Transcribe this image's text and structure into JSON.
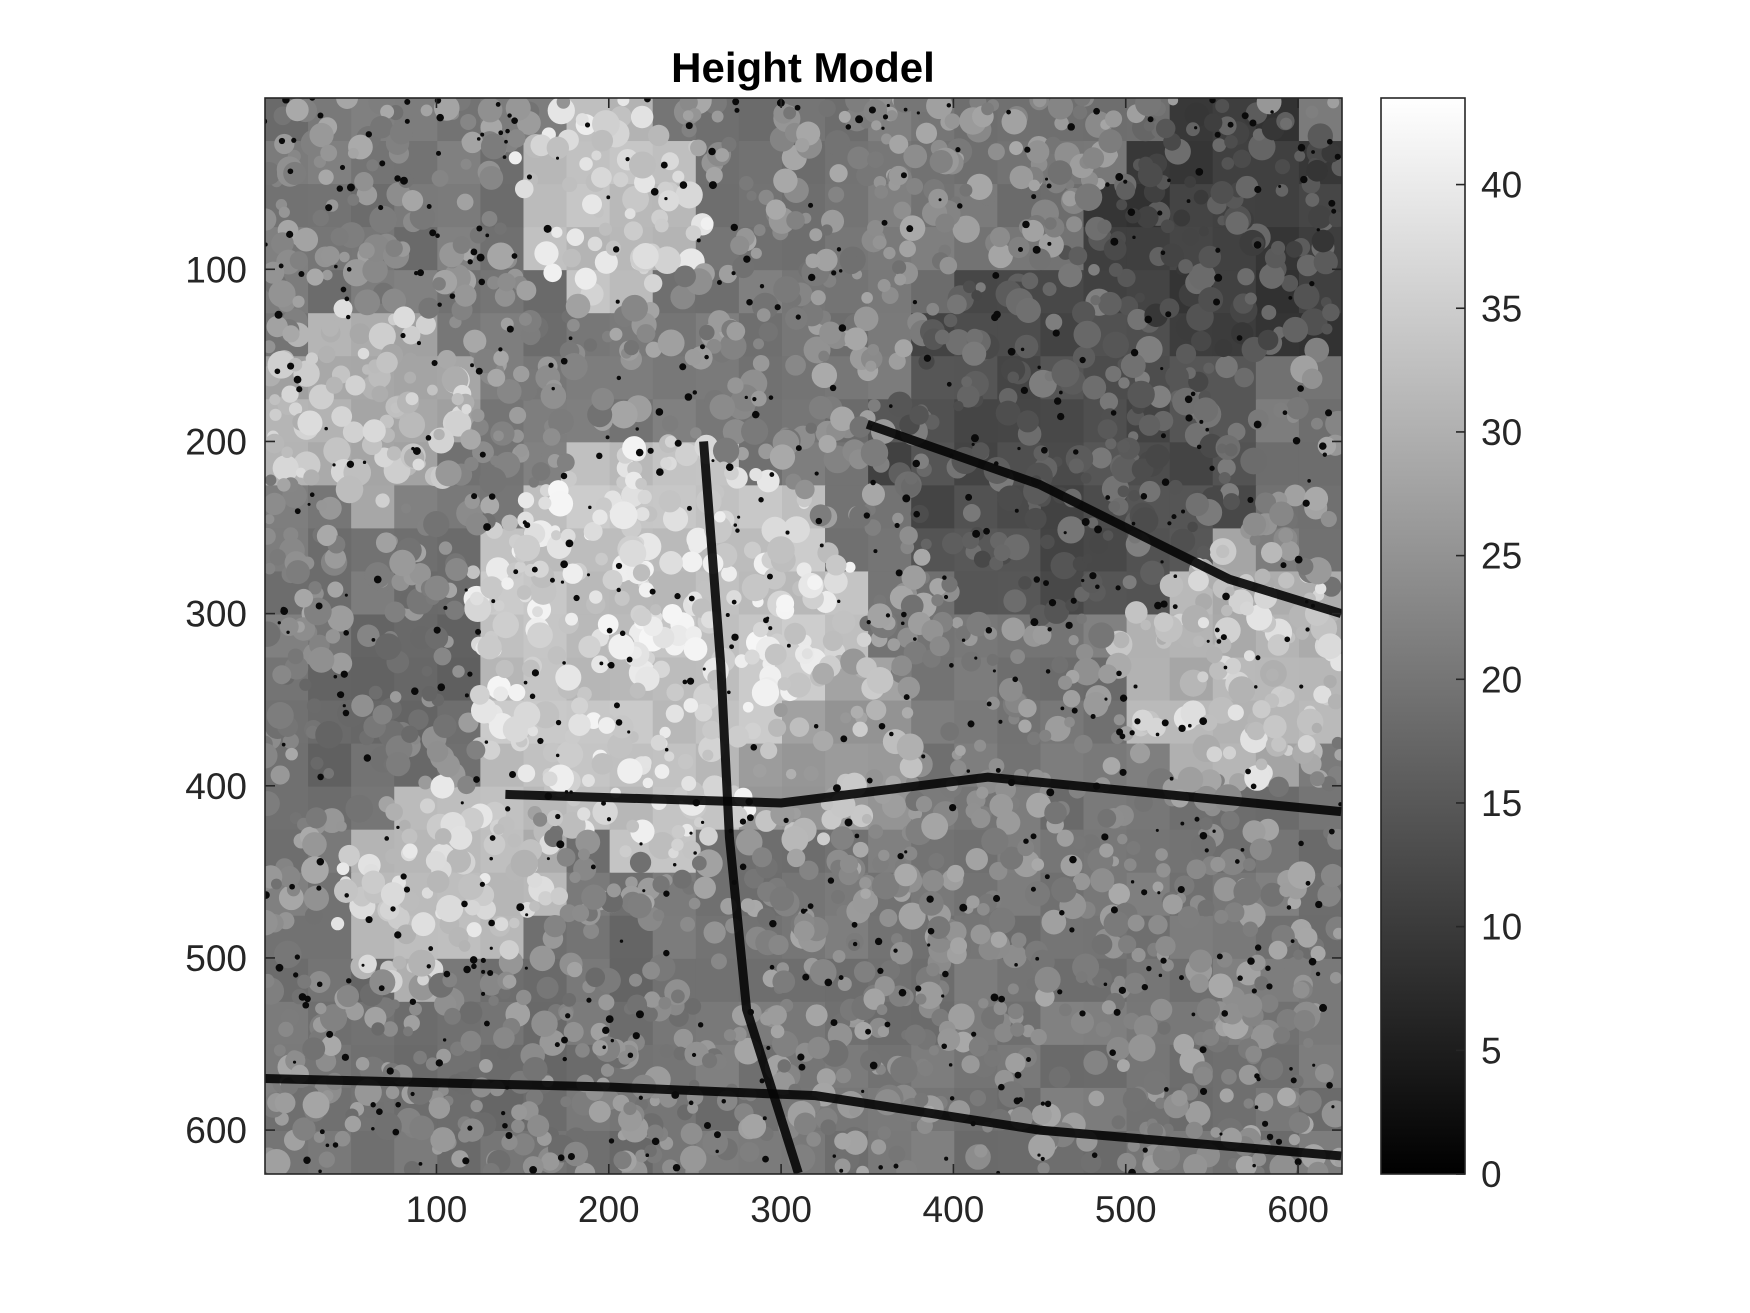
{
  "chart_data": {
    "type": "heatmap",
    "title": "Height Model",
    "xlabel": "",
    "ylabel": "",
    "xlim": [
      0.5,
      625.5
    ],
    "ylim": [
      625.5,
      0.5
    ],
    "y_reversed": true,
    "x_ticks": [
      100,
      200,
      300,
      400,
      500,
      600
    ],
    "y_ticks": [
      100,
      200,
      300,
      400,
      500,
      600
    ],
    "grid": false,
    "colormap": "gray",
    "colorbar": {
      "location": "right",
      "clim": [
        0,
        43.5
      ],
      "ticks": [
        0,
        5,
        10,
        15,
        20,
        25,
        30,
        35,
        40
      ]
    },
    "colors": {
      "low": "#000000",
      "high": "#ffffff",
      "axis": "#262626"
    }
  }
}
